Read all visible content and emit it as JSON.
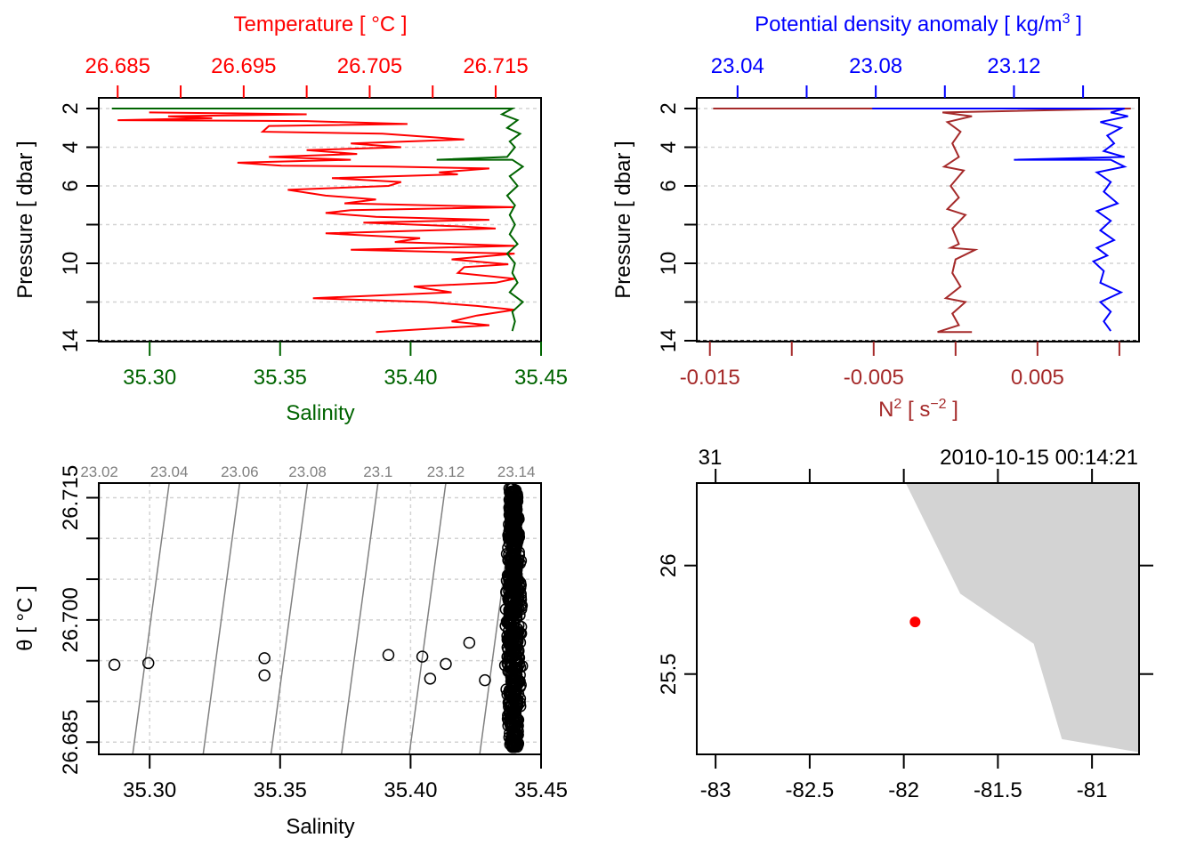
{
  "chart_data": [
    {
      "id": "profile-ts",
      "type": "line",
      "title": "",
      "top_axis": {
        "label": "Temperature [ °C ]",
        "color": "#ff0000",
        "range": [
          26.6835,
          26.7186
        ],
        "ticks": [
          26.685,
          26.69,
          26.695,
          26.7,
          26.705,
          26.71,
          26.715
        ],
        "tick_labels": [
          "26.685",
          "",
          "26.695",
          "",
          "26.705",
          "",
          "26.715"
        ]
      },
      "bottom_axis": {
        "label": "Salinity",
        "color": "#006400",
        "range": [
          35.2805,
          35.45
        ],
        "ticks": [
          35.3,
          35.35,
          35.4,
          35.45
        ],
        "tick_labels": [
          "35.30",
          "35.35",
          "35.40",
          "35.45"
        ]
      },
      "y_axis": {
        "label": "Pressure [ dbar ]",
        "range": [
          14,
          2
        ],
        "ticks": [
          2,
          4,
          6,
          8,
          10,
          12,
          14
        ],
        "tick_labels": [
          "2",
          "4",
          "6",
          "",
          "10",
          "",
          "14"
        ]
      },
      "grid": true,
      "series": [
        {
          "name": "Temperature",
          "color": "#ff0000",
          "axis": "top",
          "points": [
            [
              26.6875,
              2.2
            ],
            [
              26.694,
              2.25
            ],
            [
              26.7,
              2.3
            ],
            [
              26.689,
              2.4
            ],
            [
              26.6925,
              2.5
            ],
            [
              26.685,
              2.6
            ],
            [
              26.7,
              2.65
            ],
            [
              26.708,
              2.8
            ],
            [
              26.697,
              2.9
            ],
            [
              26.6965,
              3.2
            ],
            [
              26.706,
              3.3
            ],
            [
              26.7125,
              3.6
            ],
            [
              26.7035,
              3.8
            ],
            [
              26.7075,
              4.0
            ],
            [
              26.7,
              4.15
            ],
            [
              26.704,
              4.35
            ],
            [
              26.697,
              4.5
            ],
            [
              26.7035,
              4.65
            ],
            [
              26.6945,
              4.8
            ],
            [
              26.698,
              4.95
            ],
            [
              26.7065,
              5.0
            ],
            [
              26.7145,
              5.1
            ],
            [
              26.7105,
              5.3
            ],
            [
              26.712,
              5.4
            ],
            [
              26.702,
              5.6
            ],
            [
              26.7075,
              5.8
            ],
            [
              26.7065,
              6.0
            ],
            [
              26.6985,
              6.2
            ],
            [
              26.7015,
              6.5
            ],
            [
              26.7055,
              6.7
            ],
            [
              26.703,
              6.9
            ],
            [
              26.7165,
              7.1
            ],
            [
              26.7035,
              7.25
            ],
            [
              26.7015,
              7.4
            ],
            [
              26.7055,
              7.6
            ],
            [
              26.7145,
              7.75
            ],
            [
              26.7045,
              7.9
            ],
            [
              26.7125,
              8.1
            ],
            [
              26.715,
              8.2
            ],
            [
              26.7015,
              8.45
            ],
            [
              26.709,
              8.7
            ],
            [
              26.707,
              8.9
            ],
            [
              26.7165,
              9.1
            ],
            [
              26.7035,
              9.3
            ],
            [
              26.7165,
              9.5
            ],
            [
              26.7115,
              9.8
            ],
            [
              26.716,
              10.05
            ],
            [
              26.7125,
              10.2
            ],
            [
              26.712,
              10.5
            ],
            [
              26.7165,
              10.8
            ],
            [
              26.715,
              11.0
            ],
            [
              26.7085,
              11.2
            ],
            [
              26.7115,
              11.5
            ],
            [
              26.7005,
              11.8
            ],
            [
              26.7095,
              12.0
            ],
            [
              26.7135,
              12.2
            ],
            [
              26.7165,
              12.4
            ],
            [
              26.7135,
              12.7
            ],
            [
              26.7115,
              13.0
            ],
            [
              26.7145,
              13.2
            ],
            [
              26.7055,
              13.55
            ]
          ]
        },
        {
          "name": "Salinity",
          "color": "#006400",
          "axis": "bottom",
          "points": [
            [
              35.2855,
              2.0
            ],
            [
              35.439,
              2.0
            ],
            [
              35.435,
              2.3
            ],
            [
              35.441,
              2.6
            ],
            [
              35.437,
              3.0
            ],
            [
              35.442,
              3.3
            ],
            [
              35.438,
              3.7
            ],
            [
              35.44,
              4.0
            ],
            [
              35.437,
              4.5
            ],
            [
              35.41,
              4.65
            ],
            [
              35.439,
              4.65
            ],
            [
              35.443,
              5.0
            ],
            [
              35.438,
              5.5
            ],
            [
              35.441,
              6.0
            ],
            [
              35.437,
              6.5
            ],
            [
              35.44,
              7.0
            ],
            [
              35.438,
              7.5
            ],
            [
              35.44,
              8.0
            ],
            [
              35.438,
              8.5
            ],
            [
              35.441,
              9.0
            ],
            [
              35.437,
              9.5
            ],
            [
              35.44,
              10.0
            ],
            [
              35.439,
              10.5
            ],
            [
              35.441,
              11.0
            ],
            [
              35.438,
              11.5
            ],
            [
              35.443,
              12.0
            ],
            [
              35.439,
              12.5
            ],
            [
              35.44,
              13.0
            ],
            [
              35.439,
              13.5
            ]
          ]
        }
      ]
    },
    {
      "id": "profile-density-n2",
      "type": "line",
      "title": "",
      "top_axis": {
        "label": "Potential density anomaly [ kg/m³ ]",
        "color": "#0000ff",
        "range": [
          23.0282,
          23.1562
        ],
        "ticks": [
          23.04,
          23.06,
          23.08,
          23.1,
          23.12,
          23.14
        ],
        "tick_labels": [
          "23.04",
          "",
          "23.08",
          "",
          "23.12",
          ""
        ]
      },
      "bottom_axis": {
        "label": "N² [ s⁻² ]",
        "color": "#a52a2a",
        "range": [
          -0.0158,
          0.0112
        ],
        "ticks": [
          -0.015,
          -0.01,
          -0.005,
          0.0,
          0.005,
          0.01
        ],
        "tick_labels": [
          "-0.015",
          "",
          "-0.005",
          "",
          "0.005",
          ""
        ]
      },
      "y_axis": {
        "label": "Pressure [ dbar ]",
        "range": [
          14,
          2
        ],
        "ticks": [
          2,
          4,
          6,
          8,
          10,
          12,
          14
        ],
        "tick_labels": [
          "2",
          "4",
          "6",
          "",
          "10",
          "",
          "14"
        ]
      },
      "grid": true,
      "series": [
        {
          "name": "N2",
          "color": "#a52a2a",
          "axis": "bottom",
          "points": [
            [
              -0.0148,
              2.0
            ],
            [
              0.0107,
              2.0
            ],
            [
              -0.0008,
              2.2
            ],
            [
              0.001,
              2.4
            ],
            [
              -0.0005,
              2.7
            ],
            [
              0.0003,
              3.2
            ],
            [
              -0.0002,
              3.8
            ],
            [
              0.0002,
              4.5
            ],
            [
              -0.0007,
              5.0
            ],
            [
              0.0005,
              5.2
            ],
            [
              -0.0003,
              6.0
            ],
            [
              0.0002,
              6.6
            ],
            [
              -0.0005,
              7.2
            ],
            [
              0.0006,
              7.5
            ],
            [
              -0.0002,
              8.2
            ],
            [
              0.0002,
              9.0
            ],
            [
              -0.0003,
              9.2
            ],
            [
              0.0012,
              9.3
            ],
            [
              0.0,
              9.8
            ],
            [
              -0.0002,
              10.5
            ],
            [
              0.0003,
              11.2
            ],
            [
              -0.0006,
              11.8
            ],
            [
              0.0006,
              12.0
            ],
            [
              -0.0002,
              12.6
            ],
            [
              0.0002,
              13.2
            ],
            [
              -0.0011,
              13.55
            ],
            [
              0.001,
              13.55
            ]
          ]
        },
        {
          "name": "Potential density anomaly",
          "color": "#0000ff",
          "axis": "top",
          "points": [
            [
              23.079,
              2.0
            ],
            [
              23.152,
              2.0
            ],
            [
              23.148,
              2.2
            ],
            [
              23.153,
              2.4
            ],
            [
              23.145,
              2.7
            ],
            [
              23.151,
              3.0
            ],
            [
              23.147,
              3.4
            ],
            [
              23.149,
              3.8
            ],
            [
              23.146,
              4.2
            ],
            [
              23.152,
              4.5
            ],
            [
              23.12,
              4.65
            ],
            [
              23.148,
              4.65
            ],
            [
              23.152,
              5.0
            ],
            [
              23.144,
              5.3
            ],
            [
              23.148,
              5.8
            ],
            [
              23.146,
              6.3
            ],
            [
              23.15,
              6.9
            ],
            [
              23.144,
              7.3
            ],
            [
              23.148,
              7.8
            ],
            [
              23.145,
              8.3
            ],
            [
              23.149,
              8.8
            ],
            [
              23.144,
              9.2
            ],
            [
              23.147,
              9.6
            ],
            [
              23.143,
              9.9
            ],
            [
              23.146,
              10.4
            ],
            [
              23.145,
              11.0
            ],
            [
              23.151,
              11.5
            ],
            [
              23.145,
              12.0
            ],
            [
              23.148,
              12.5
            ],
            [
              23.146,
              13.0
            ],
            [
              23.148,
              13.5
            ]
          ]
        }
      ]
    },
    {
      "id": "ts-diagram",
      "type": "scatter",
      "title": "",
      "xlabel": "Salinity",
      "ylabel": "θ [ °C ]",
      "xlim": [
        35.2805,
        35.45
      ],
      "ylim": [
        26.6835,
        26.7168
      ],
      "x_ticks": [
        35.3,
        35.35,
        35.4,
        35.45
      ],
      "x_tick_labels": [
        "35.30",
        "35.35",
        "35.40",
        "35.45"
      ],
      "y_ticks": [
        26.685,
        26.69,
        26.695,
        26.7,
        26.705,
        26.71,
        26.715
      ],
      "y_tick_labels": [
        "26.685",
        "",
        "",
        "26.700",
        "",
        "",
        "26.715"
      ],
      "isopycnals": {
        "color": "#808080",
        "labels": [
          "23.02",
          "23.04",
          "23.06",
          "23.08",
          "23.1",
          "23.12",
          "23.14"
        ],
        "bottom_salinity": [
          35.2805,
          35.2935,
          35.3205,
          35.3465,
          35.3735,
          35.3995,
          35.4265
        ],
        "top_salinity": [
          35.2807,
          35.3075,
          35.3345,
          35.3605,
          35.3875,
          35.4135,
          35.4405
        ]
      },
      "grid": true,
      "outlier_points": [
        [
          35.2865,
          26.6945
        ],
        [
          35.2995,
          26.6947
        ],
        [
          35.344,
          26.6953
        ],
        [
          35.344,
          26.6932
        ],
        [
          35.3915,
          26.6957
        ],
        [
          35.4045,
          26.6955
        ],
        [
          35.4075,
          26.6928
        ],
        [
          35.4135,
          26.6946
        ],
        [
          35.4225,
          26.6972
        ],
        [
          35.4285,
          26.6926
        ]
      ],
      "cluster": {
        "salinity_center": 35.4395,
        "salinity_spread": 0.0035,
        "theta_range": [
          26.6844,
          26.7163
        ],
        "count": 700
      },
      "marker": "open-circle"
    },
    {
      "id": "station-map",
      "type": "scatter",
      "title": "",
      "top_left_label": "31",
      "top_right_label": "2010-10-15 00:14:21",
      "xlim": [
        -83.1,
        -80.75
      ],
      "ylim": [
        25.13,
        26.38
      ],
      "x_ticks": [
        -83,
        -82.5,
        -82,
        -81.5,
        -81
      ],
      "x_tick_labels": [
        "-83",
        "-82.5",
        "-82",
        "-81.5",
        "-81"
      ],
      "y_ticks": [
        25.5,
        26
      ],
      "y_tick_labels": [
        "25.5",
        "26"
      ],
      "station": {
        "lon": -81.94,
        "lat": 25.74,
        "color": "#ff0000"
      },
      "land_color": "#d3d3d3",
      "coastline": [
        [
          -81.99,
          26.38
        ],
        [
          -81.7,
          25.87
        ],
        [
          -81.31,
          25.64
        ],
        [
          -81.16,
          25.2
        ],
        [
          -80.75,
          25.14
        ],
        [
          -80.75,
          26.38
        ]
      ]
    }
  ]
}
